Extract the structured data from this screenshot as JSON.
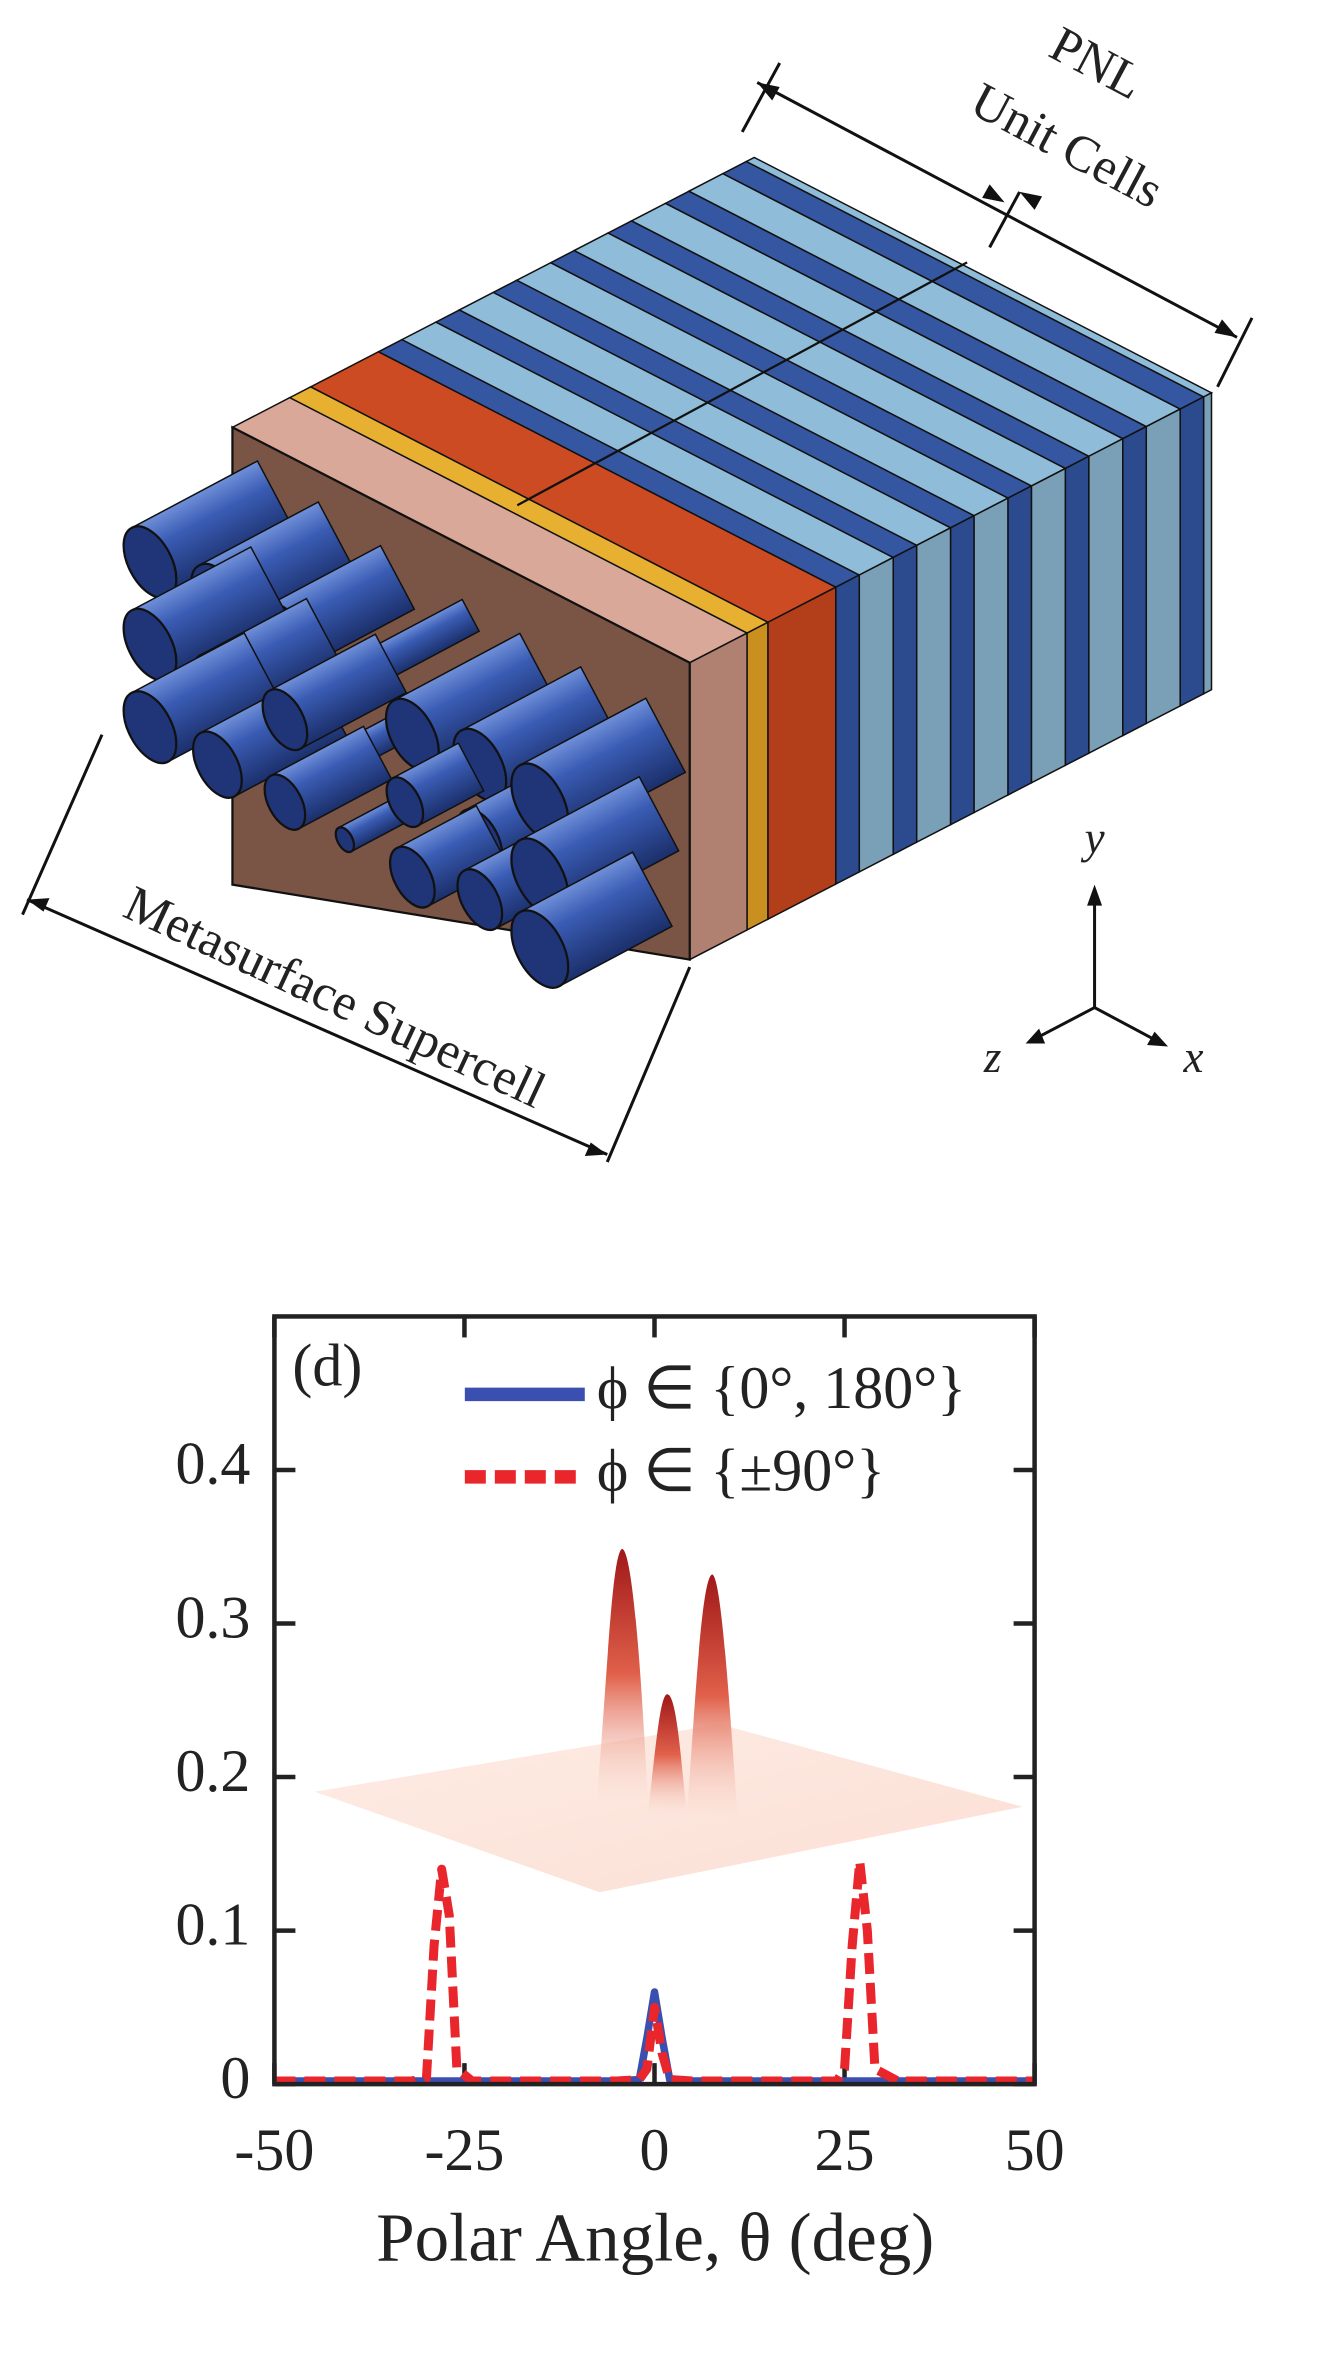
{
  "diagram": {
    "dimension_labels": [
      "PNL",
      "Unit Cells",
      "Metasurface Supercell"
    ],
    "axes": [
      "y",
      "z",
      "x"
    ]
  },
  "chart_data": {
    "type": "line",
    "panel_label": "(d)",
    "xlabel": "Polar Angle, θ (deg)",
    "x": [
      -50,
      -40,
      -32,
      -30,
      -29,
      -28,
      -27,
      -26,
      -24,
      -15,
      -5,
      -2,
      -1,
      0,
      1,
      2,
      5,
      15,
      24,
      25,
      26,
      27,
      28,
      29,
      32,
      40,
      50
    ],
    "series": [
      {
        "name": "ϕ ∈ {0°, 180°}",
        "color": "#3a4fb0",
        "style": "solid",
        "values": [
          0.002,
          0.002,
          0.002,
          0.002,
          0.002,
          0.002,
          0.002,
          0.002,
          0.002,
          0.002,
          0.002,
          0.003,
          0.03,
          0.06,
          0.03,
          0.003,
          0.002,
          0.002,
          0.002,
          0.002,
          0.002,
          0.002,
          0.002,
          0.002,
          0.002,
          0.002,
          0.002
        ]
      },
      {
        "name": "ϕ ∈ {±90°}",
        "color": "#e8262c",
        "style": "dashed",
        "values": [
          0.002,
          0.002,
          0.002,
          0.004,
          0.09,
          0.14,
          0.11,
          0.01,
          0.002,
          0.002,
          0.002,
          0.003,
          0.01,
          0.05,
          0.02,
          0.003,
          0.002,
          0.002,
          0.002,
          0.01,
          0.09,
          0.145,
          0.1,
          0.01,
          0.002,
          0.002,
          0.002
        ]
      }
    ],
    "xlim": [
      -50,
      50
    ],
    "xticks": [
      -50,
      -25,
      0,
      25,
      50
    ],
    "ylim": [
      0,
      0.5
    ],
    "yticks": [
      0,
      0.1,
      0.2,
      0.3,
      0.4
    ]
  }
}
